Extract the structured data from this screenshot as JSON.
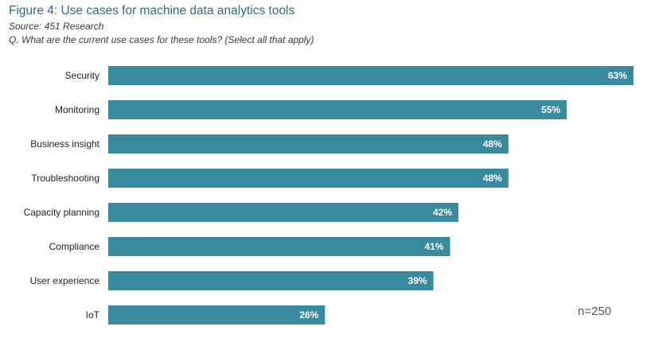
{
  "title": "Figure 4: Use cases for machine data analytics tools",
  "source": "Source: 451 Research",
  "question": "Q. What are the current use cases for these tools? (Select all that apply)",
  "note": "n=250",
  "colors": {
    "bar": "#3a8a9f",
    "bar_label": "#ffffff",
    "category_label": "#222222",
    "title": "#2e6a87"
  },
  "chart_data": {
    "type": "bar",
    "orientation": "horizontal",
    "categories": [
      "Security",
      "Monitoring",
      "Business insight",
      "Troubleshooting",
      "Capacity planning",
      "Compliance",
      "User experience",
      "IoT"
    ],
    "values": [
      63,
      55,
      48,
      48,
      42,
      41,
      39,
      26
    ],
    "value_labels": [
      "63%",
      "55%",
      "48%",
      "48%",
      "42%",
      "41%",
      "39%",
      "26%"
    ],
    "unit": "%",
    "xlim": [
      0,
      63
    ],
    "axis_visible": false,
    "grid": false,
    "legend": "none"
  }
}
